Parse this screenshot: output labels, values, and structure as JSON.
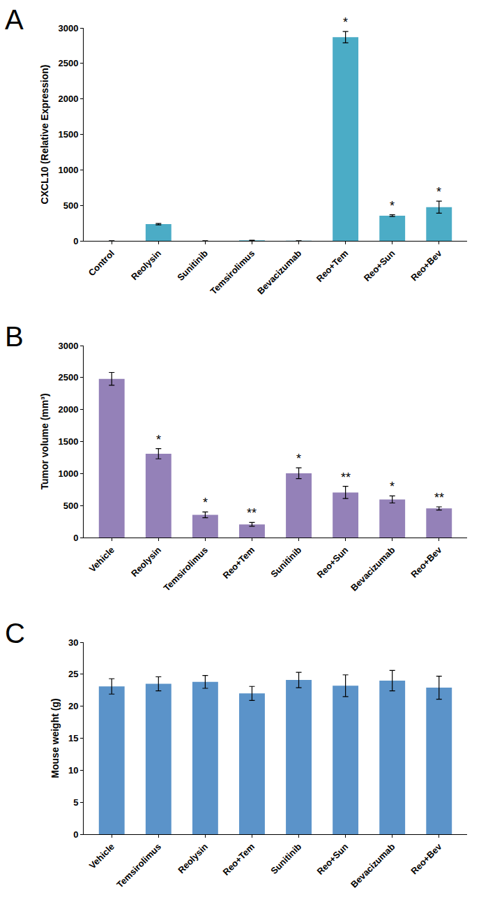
{
  "chart_data": [
    {
      "type": "bar",
      "title": "A",
      "y_label": "CXCL10 (Relative Expression)",
      "categories": [
        "Control",
        "Reolysin",
        "Sunitinib",
        "Temsirolimus",
        "Bevacizumab",
        "Reo+Tem",
        "Reo+Sun",
        "Reo+Bev"
      ],
      "values": [
        1,
        235,
        1,
        8,
        2,
        2870,
        355,
        475
      ],
      "errors": [
        0,
        10,
        0,
        2,
        0,
        80,
        12,
        85
      ],
      "color": "#4bacc6",
      "ylim": [
        0,
        3000
      ],
      "yticks": [
        0,
        500,
        1000,
        1500,
        2000,
        2500,
        3000
      ],
      "grid": false,
      "annotations": [
        {
          "x": "Reo+Tem",
          "text": "*"
        },
        {
          "x": "Reo+Sun",
          "text": "*"
        },
        {
          "x": "Reo+Bev",
          "text": "*"
        }
      ]
    },
    {
      "type": "bar",
      "title": "B",
      "y_label": "Tumor volume (mm³)",
      "categories": [
        "Vehicle",
        "Reolysin",
        "Temsirolimus",
        "Reo+Tem",
        "Sunitinib",
        "Reo+Sun",
        "Bevacizumab",
        "Reo+Bev"
      ],
      "values": [
        2480,
        1310,
        355,
        205,
        1005,
        705,
        595,
        455
      ],
      "errors": [
        100,
        80,
        45,
        30,
        85,
        95,
        55,
        25
      ],
      "color": "#9481b8",
      "ylim": [
        0,
        3000
      ],
      "yticks": [
        0,
        500,
        1000,
        1500,
        2000,
        2500,
        3000
      ],
      "grid": false,
      "annotations": [
        {
          "x": "Reolysin",
          "text": "*"
        },
        {
          "x": "Temsirolimus",
          "text": "*"
        },
        {
          "x": "Reo+Tem",
          "text": "**"
        },
        {
          "x": "Sunitinib",
          "text": "*"
        },
        {
          "x": "Reo+Sun",
          "text": "**"
        },
        {
          "x": "Bevacizumab",
          "text": "*"
        },
        {
          "x": "Reo+Bev",
          "text": "**"
        }
      ]
    },
    {
      "type": "bar",
      "title": "C",
      "y_label": "Mouse weight (g)",
      "categories": [
        "Vehicle",
        "Temsirolimus",
        "Reolysin",
        "Reo+Tem",
        "Sunitinib",
        "Reo+Sun",
        "Bevacizumab",
        "Reo+Bev"
      ],
      "values": [
        23.1,
        23.5,
        23.8,
        22.0,
        24.1,
        23.2,
        24.0,
        22.9
      ],
      "errors": [
        1.2,
        1.1,
        1.0,
        1.1,
        1.2,
        1.7,
        1.6,
        1.8
      ],
      "color": "#5b93c9",
      "ylim": [
        0,
        30
      ],
      "yticks": [
        0,
        5,
        10,
        15,
        20,
        25,
        30
      ],
      "grid": false
    }
  ]
}
